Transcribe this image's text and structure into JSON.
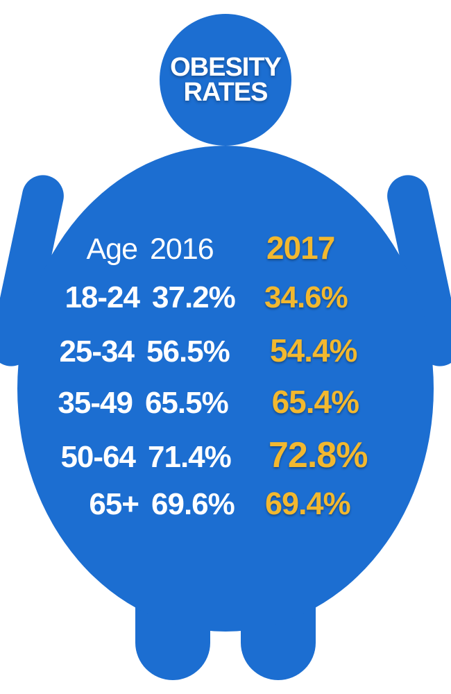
{
  "title_line1": "OBESITY",
  "title_line2": "RATES",
  "colors": {
    "shape": "#1c6ed1",
    "text_white": "#ffffff",
    "text_gold": "#f2b82f",
    "background": "#ffffff"
  },
  "table": {
    "headers": {
      "age": "Age",
      "y2016": "2016",
      "y2017": "2017"
    },
    "rows": [
      {
        "age": "18-24",
        "y2016": "37.2%",
        "y2017": "34.6%",
        "fs_age": 44,
        "fs_2016": 44,
        "fs_2017": 44,
        "ml_2017": -6
      },
      {
        "age": "25-34",
        "y2016": "56.5%",
        "y2017": "54.4%",
        "fs_age": 44,
        "fs_2016": 44,
        "fs_2017": 46,
        "ml_2017": 10
      },
      {
        "age": "35-49",
        "y2016": "65.5%",
        "y2017": "65.4%",
        "fs_age": 44,
        "fs_2016": 44,
        "fs_2017": 46,
        "ml_2017": 16
      },
      {
        "age": "50-64",
        "y2016": "71.4%",
        "y2017": "72.8%",
        "fs_age": 44,
        "fs_2016": 44,
        "fs_2017": 52,
        "ml_2017": 6
      },
      {
        "age": "65+",
        "y2016": "69.6%",
        "y2017": "69.4%",
        "fs_age": 44,
        "fs_2016": 44,
        "fs_2017": 45,
        "ml_2017": -4
      }
    ]
  }
}
